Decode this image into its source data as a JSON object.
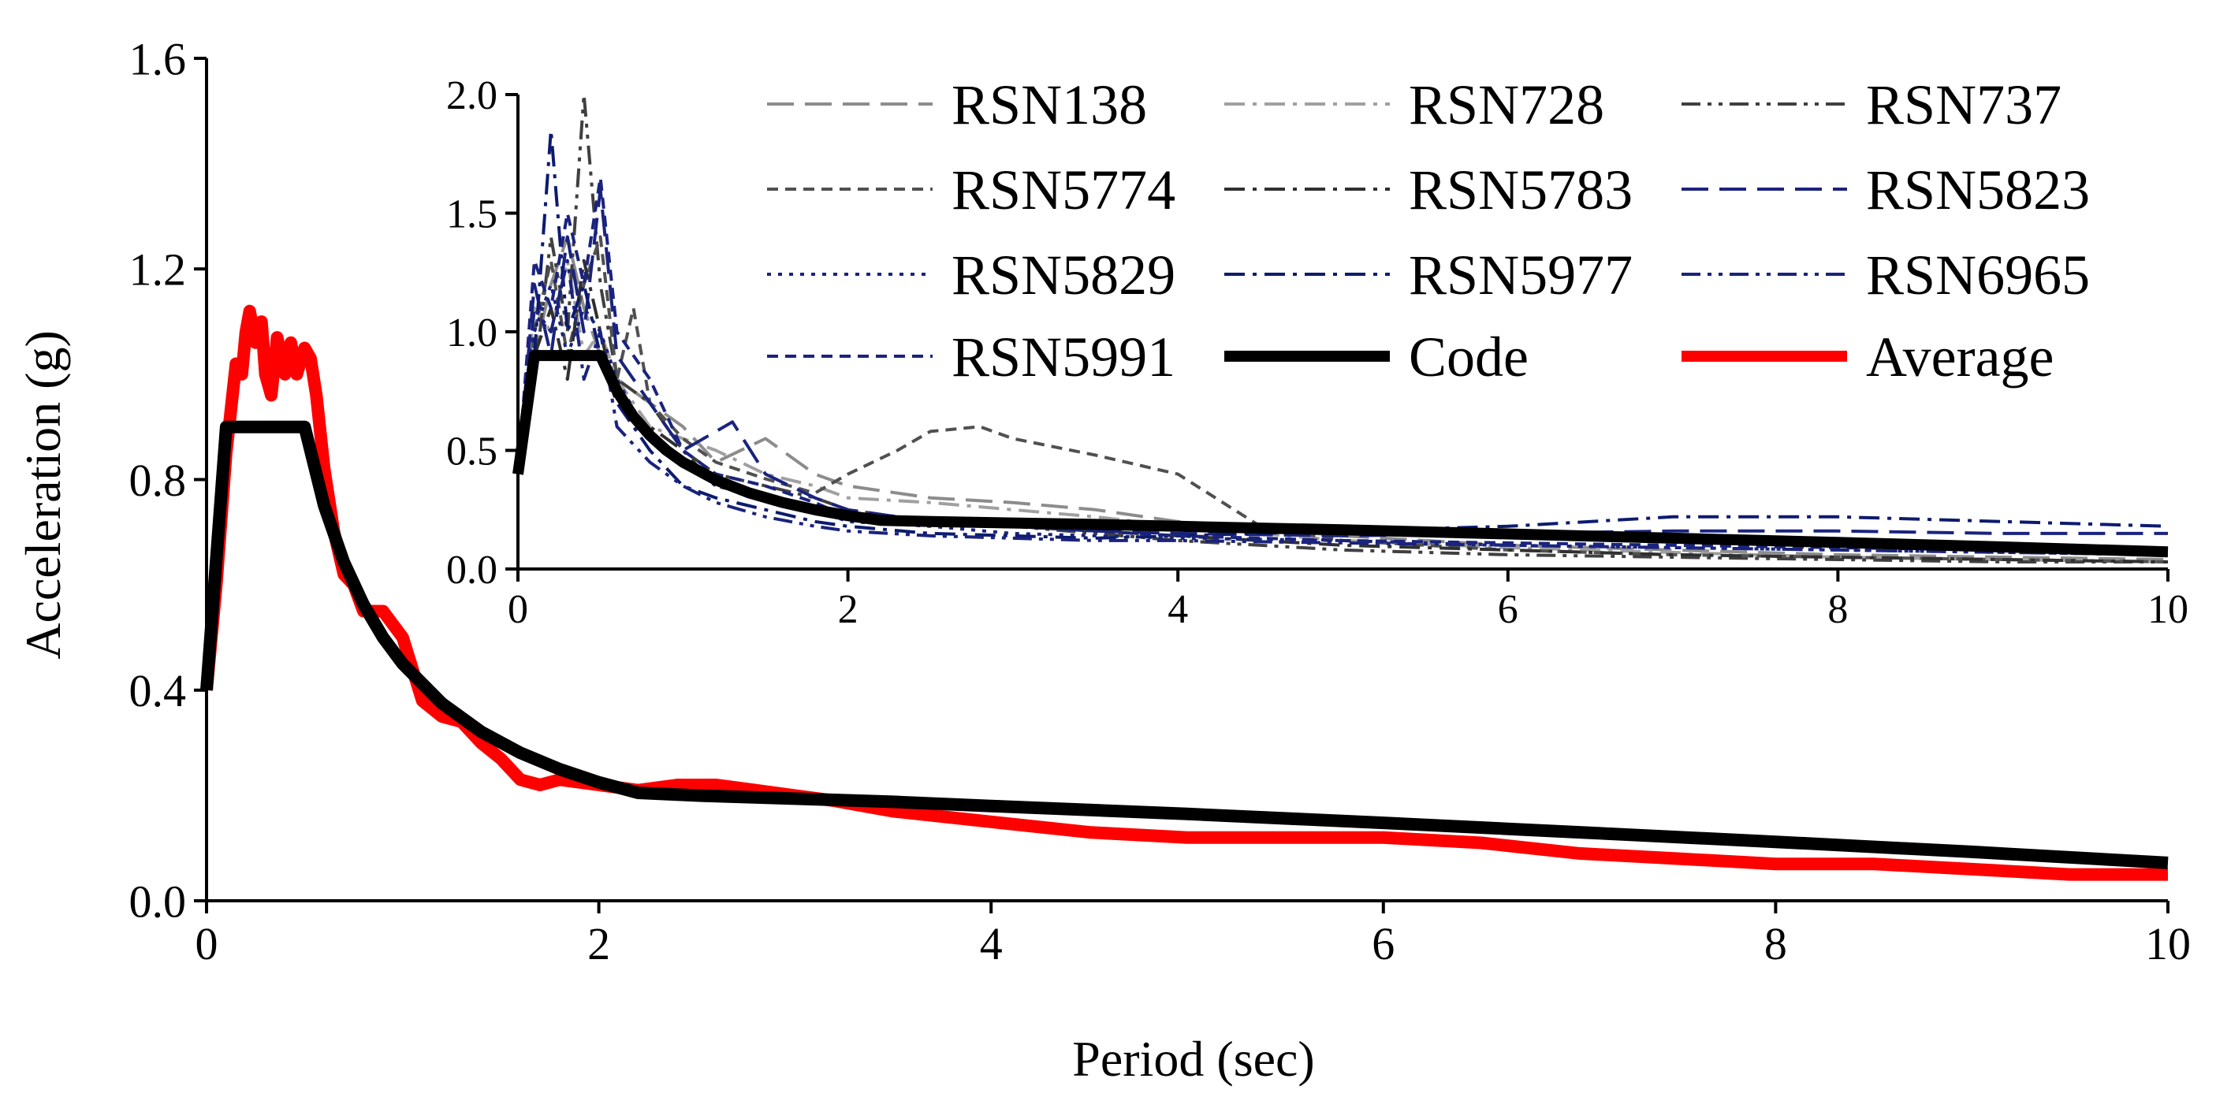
{
  "chart_data": [
    {
      "id": "main",
      "type": "line",
      "title": "",
      "xlabel": "Period (sec)",
      "ylabel": "Acceleration (g)",
      "xlim": [
        0,
        10
      ],
      "ylim": [
        0,
        1.6
      ],
      "xticks": [
        0,
        2,
        4,
        6,
        8,
        10
      ],
      "yticks": [
        0.0,
        0.4,
        0.8,
        1.2,
        1.6
      ],
      "xtick_labels": [
        "0",
        "2",
        "4",
        "6",
        "8",
        "10"
      ],
      "ytick_labels": [
        "0.0",
        "0.4",
        "0.8",
        "1.2",
        "1.6"
      ],
      "grid": false,
      "series": [
        {
          "name": "Average",
          "color": "#ff0000",
          "dash": "solid",
          "x": [
            0,
            0.05,
            0.1,
            0.15,
            0.18,
            0.2,
            0.22,
            0.25,
            0.28,
            0.3,
            0.33,
            0.36,
            0.4,
            0.43,
            0.46,
            0.5,
            0.53,
            0.56,
            0.6,
            0.65,
            0.7,
            0.75,
            0.8,
            0.9,
            1.0,
            1.1,
            1.2,
            1.3,
            1.4,
            1.5,
            1.6,
            1.7,
            1.8,
            2.0,
            2.2,
            2.4,
            2.6,
            2.8,
            3.0,
            3.2,
            3.5,
            4.0,
            4.5,
            5.0,
            5.5,
            6.0,
            6.5,
            7.0,
            7.5,
            8.0,
            8.5,
            9.0,
            9.5,
            10.0
          ],
          "y": [
            0.4,
            0.6,
            0.85,
            1.02,
            1.0,
            1.08,
            1.12,
            1.06,
            1.1,
            1.0,
            0.96,
            1.07,
            1.0,
            1.06,
            1.0,
            1.05,
            1.03,
            0.96,
            0.82,
            0.7,
            0.62,
            0.6,
            0.55,
            0.55,
            0.5,
            0.38,
            0.35,
            0.34,
            0.3,
            0.27,
            0.23,
            0.22,
            0.23,
            0.22,
            0.21,
            0.22,
            0.22,
            0.21,
            0.2,
            0.19,
            0.17,
            0.15,
            0.13,
            0.12,
            0.12,
            0.12,
            0.11,
            0.09,
            0.08,
            0.07,
            0.07,
            0.06,
            0.05,
            0.05
          ]
        },
        {
          "name": "Code",
          "color": "#000000",
          "dash": "solid",
          "x": [
            0,
            0.1,
            0.5,
            0.6,
            0.7,
            0.8,
            0.9,
            1.0,
            1.2,
            1.4,
            1.6,
            1.8,
            2.0,
            2.2,
            2.5,
            3.0,
            3.5,
            4.0,
            5.0,
            6.0,
            7.0,
            8.0,
            9.0,
            10.0
          ],
          "y": [
            0.4,
            0.9,
            0.9,
            0.75,
            0.643,
            0.563,
            0.5,
            0.45,
            0.375,
            0.321,
            0.281,
            0.25,
            0.225,
            0.205,
            0.2,
            0.194,
            0.188,
            0.18,
            0.165,
            0.148,
            0.13,
            0.112,
            0.093,
            0.072
          ]
        }
      ]
    },
    {
      "id": "inset",
      "type": "line",
      "title": "",
      "xlim": [
        0,
        10
      ],
      "ylim": [
        0,
        2.0
      ],
      "xticks": [
        0,
        2,
        4,
        6,
        8,
        10
      ],
      "yticks": [
        0.0,
        0.5,
        1.0,
        1.5,
        2.0
      ],
      "xtick_labels": [
        "0",
        "2",
        "4",
        "6",
        "8",
        "10"
      ],
      "ytick_labels": [
        "0.0",
        "0.5",
        "1.0",
        "1.5",
        "2.0"
      ],
      "grid": false,
      "legend_position": "top",
      "series": [
        {
          "name": "RSN138",
          "color": "#8c8c8c",
          "dash": "long-dash",
          "x": [
            0,
            0.1,
            0.2,
            0.3,
            0.4,
            0.5,
            0.6,
            0.8,
            1.0,
            1.2,
            1.5,
            1.8,
            2.0,
            2.5,
            3.0,
            3.5,
            4.0,
            5.0,
            6.0,
            7.0,
            8.0,
            9.0,
            10.0
          ],
          "y": [
            0.4,
            0.9,
            1.2,
            1.4,
            1.1,
            0.9,
            0.8,
            0.7,
            0.6,
            0.45,
            0.55,
            0.4,
            0.35,
            0.3,
            0.28,
            0.25,
            0.2,
            0.14,
            0.1,
            0.08,
            0.06,
            0.05,
            0.04
          ]
        },
        {
          "name": "RSN728",
          "color": "#a0a0a0",
          "dash": "dash-dot",
          "x": [
            0,
            0.1,
            0.2,
            0.3,
            0.4,
            0.5,
            0.6,
            0.8,
            1.0,
            1.2,
            1.5,
            1.8,
            2.0,
            2.5,
            3.0,
            3.5,
            4.0,
            5.0,
            6.0,
            7.0,
            8.0,
            9.0,
            10.0
          ],
          "y": [
            0.4,
            1.1,
            1.0,
            1.3,
            0.9,
            1.0,
            0.8,
            0.6,
            0.55,
            0.5,
            0.4,
            0.35,
            0.3,
            0.28,
            0.25,
            0.22,
            0.18,
            0.12,
            0.09,
            0.07,
            0.05,
            0.04,
            0.03
          ]
        },
        {
          "name": "RSN737",
          "color": "#404040",
          "dash": "dash-dot-dot",
          "x": [
            0,
            0.1,
            0.2,
            0.3,
            0.4,
            0.5,
            0.6,
            0.8,
            1.0,
            1.2,
            1.5,
            1.8,
            2.0,
            2.5,
            3.0,
            3.5,
            4.0,
            5.0,
            6.0,
            7.0,
            8.0,
            9.0,
            10.0
          ],
          "y": [
            0.4,
            0.8,
            1.4,
            1.0,
            2.0,
            1.2,
            0.8,
            0.7,
            0.5,
            0.4,
            0.35,
            0.3,
            0.25,
            0.2,
            0.18,
            0.15,
            0.12,
            0.08,
            0.06,
            0.05,
            0.04,
            0.03,
            0.03
          ]
        },
        {
          "name": "RSN5774",
          "color": "#505050",
          "dash": "short-dash",
          "x": [
            0,
            0.1,
            0.2,
            0.3,
            0.4,
            0.5,
            0.6,
            0.7,
            0.8,
            1.0,
            1.2,
            1.5,
            1.8,
            2.0,
            2.3,
            2.5,
            2.8,
            3.0,
            3.5,
            4.0,
            4.5,
            5.0,
            6.0,
            7.0,
            8.0,
            9.0,
            10.0
          ],
          "y": [
            0.4,
            1.0,
            1.3,
            0.9,
            1.2,
            1.4,
            0.8,
            1.1,
            0.7,
            0.55,
            0.45,
            0.38,
            0.32,
            0.4,
            0.5,
            0.58,
            0.6,
            0.55,
            0.48,
            0.4,
            0.18,
            0.12,
            0.08,
            0.06,
            0.05,
            0.04,
            0.03
          ]
        },
        {
          "name": "RSN5783",
          "color": "#303030",
          "dash": "dash-dot",
          "x": [
            0,
            0.1,
            0.2,
            0.3,
            0.4,
            0.5,
            0.6,
            0.8,
            1.0,
            1.2,
            1.5,
            1.8,
            2.0,
            2.5,
            3.0,
            3.5,
            4.0,
            5.0,
            6.0,
            7.0,
            8.0,
            9.0,
            10.0
          ],
          "y": [
            0.4,
            0.9,
            1.1,
            0.8,
            1.3,
            1.0,
            0.7,
            0.6,
            0.5,
            0.35,
            0.3,
            0.25,
            0.22,
            0.2,
            0.18,
            0.16,
            0.14,
            0.1,
            0.08,
            0.06,
            0.05,
            0.04,
            0.03
          ]
        },
        {
          "name": "RSN5823",
          "color": "#1a237e",
          "dash": "long-dash",
          "x": [
            0,
            0.1,
            0.2,
            0.3,
            0.4,
            0.5,
            0.6,
            0.8,
            1.0,
            1.3,
            1.5,
            1.8,
            2.0,
            2.5,
            3.0,
            3.5,
            4.0,
            5.0,
            6.0,
            7.0,
            8.0,
            9.0,
            10.0
          ],
          "y": [
            0.4,
            1.2,
            0.9,
            1.4,
            1.0,
            1.6,
            0.9,
            0.7,
            0.5,
            0.62,
            0.4,
            0.3,
            0.25,
            0.2,
            0.18,
            0.16,
            0.15,
            0.14,
            0.15,
            0.16,
            0.16,
            0.15,
            0.15
          ]
        },
        {
          "name": "RSN5829",
          "color": "#1a237e",
          "dash": "dot",
          "x": [
            0,
            0.1,
            0.2,
            0.3,
            0.4,
            0.5,
            0.6,
            0.8,
            1.0,
            1.2,
            1.5,
            1.8,
            2.0,
            2.5,
            3.0,
            3.5,
            4.0,
            5.0,
            6.0,
            7.0,
            8.0,
            9.0,
            10.0
          ],
          "y": [
            0.4,
            1.0,
            1.2,
            0.9,
            1.1,
            1.0,
            0.8,
            0.55,
            0.45,
            0.35,
            0.3,
            0.25,
            0.2,
            0.18,
            0.15,
            0.14,
            0.13,
            0.12,
            0.1,
            0.09,
            0.08,
            0.07,
            0.06
          ]
        },
        {
          "name": "RSN5977",
          "color": "#0d1b6e",
          "dash": "dash-dot",
          "x": [
            0,
            0.1,
            0.2,
            0.3,
            0.4,
            0.5,
            0.6,
            0.8,
            1.0,
            1.2,
            1.5,
            1.8,
            2.0,
            2.5,
            3.0,
            3.5,
            4.0,
            5.0,
            6.0,
            7.0,
            8.0,
            9.0,
            10.0
          ],
          "y": [
            0.4,
            0.9,
            1.85,
            1.0,
            1.2,
            0.9,
            0.7,
            0.5,
            0.35,
            0.3,
            0.25,
            0.2,
            0.18,
            0.15,
            0.14,
            0.13,
            0.14,
            0.16,
            0.18,
            0.22,
            0.22,
            0.2,
            0.18
          ]
        },
        {
          "name": "RSN6965",
          "color": "#1a237e",
          "dash": "dash-dot-dot",
          "x": [
            0,
            0.1,
            0.2,
            0.3,
            0.4,
            0.5,
            0.6,
            0.8,
            1.0,
            1.2,
            1.5,
            1.8,
            2.0,
            2.5,
            3.0,
            3.5,
            4.0,
            5.0,
            6.0,
            7.0,
            8.0,
            9.0,
            10.0
          ],
          "y": [
            0.4,
            1.1,
            1.0,
            1.3,
            0.8,
            1.0,
            0.6,
            0.45,
            0.35,
            0.28,
            0.22,
            0.18,
            0.16,
            0.14,
            0.13,
            0.12,
            0.12,
            0.11,
            0.1,
            0.09,
            0.08,
            0.07,
            0.06
          ]
        },
        {
          "name": "RSN5991",
          "color": "#1a237e",
          "dash": "short-dash",
          "x": [
            0,
            0.1,
            0.2,
            0.3,
            0.4,
            0.5,
            0.6,
            0.8,
            1.0,
            1.2,
            1.5,
            1.8,
            2.0,
            2.5,
            3.0,
            3.5,
            4.0,
            5.0,
            6.0,
            7.0,
            8.0,
            9.0,
            10.0
          ],
          "y": [
            0.4,
            1.3,
            1.1,
            1.5,
            1.2,
            1.65,
            1.0,
            0.8,
            0.5,
            0.4,
            0.35,
            0.28,
            0.22,
            0.2,
            0.18,
            0.16,
            0.14,
            0.12,
            0.11,
            0.1,
            0.09,
            0.08,
            0.07
          ]
        },
        {
          "name": "Code",
          "color": "#000000",
          "dash": "solid",
          "x": [
            0,
            0.1,
            0.5,
            0.6,
            0.7,
            0.8,
            0.9,
            1.0,
            1.2,
            1.4,
            1.6,
            1.8,
            2.0,
            2.2,
            2.5,
            3.0,
            3.5,
            4.0,
            5.0,
            6.0,
            7.0,
            8.0,
            9.0,
            10.0
          ],
          "y": [
            0.4,
            0.9,
            0.9,
            0.75,
            0.643,
            0.563,
            0.5,
            0.45,
            0.375,
            0.321,
            0.281,
            0.25,
            0.225,
            0.205,
            0.2,
            0.194,
            0.188,
            0.18,
            0.165,
            0.148,
            0.13,
            0.112,
            0.093,
            0.072
          ]
        },
        {
          "name": "Average",
          "color": "#ff0000",
          "dash": "solid",
          "legend_only": true,
          "x": [],
          "y": []
        }
      ]
    }
  ]
}
